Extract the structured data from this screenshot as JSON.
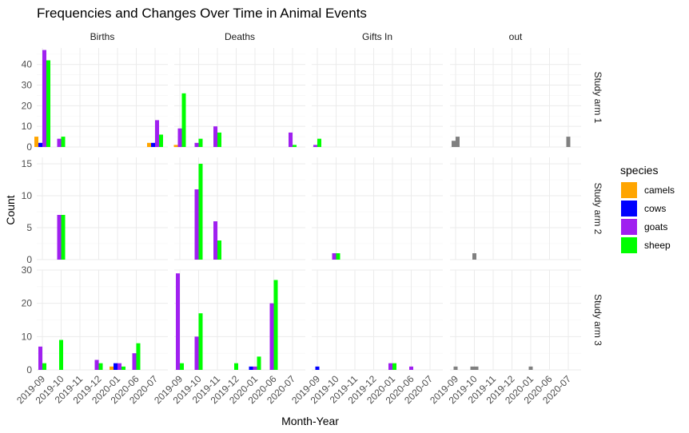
{
  "chart_data": {
    "type": "bar",
    "title": "Frequencies and Changes Over Time in Animal Events",
    "xlabel": "Month-Year",
    "ylabel": "Count",
    "categories": [
      "2019-09",
      "2019-10",
      "2019-11",
      "2019-12",
      "2020-01",
      "2020-06",
      "2020-07"
    ],
    "columns": [
      "Births",
      "Deaths",
      "Gifts In",
      "out"
    ],
    "rows": [
      "Study arm 1",
      "Study arm 2",
      "Study arm 3"
    ],
    "legend": {
      "title": "species",
      "position": "right",
      "items": [
        {
          "name": "camels",
          "color": "#FFA500"
        },
        {
          "name": "cows",
          "color": "#0000FF"
        },
        {
          "name": "goats",
          "color": "#A020F0"
        },
        {
          "name": "sheep",
          "color": "#00FF00"
        }
      ]
    },
    "na_color": "#808080",
    "grid": true,
    "row_scales": [
      {
        "ylim": [
          0,
          48
        ],
        "ticks": [
          0,
          10,
          20,
          30,
          40
        ]
      },
      {
        "ylim": [
          0,
          16
        ],
        "ticks": [
          0,
          5,
          10,
          15
        ]
      },
      {
        "ylim": [
          0,
          30
        ],
        "ticks": [
          0,
          10,
          20,
          30
        ]
      }
    ],
    "panels": [
      {
        "row": "Study arm 1",
        "column": "Births",
        "bars": [
          {
            "x": "2019-09",
            "series": [
              "camels",
              "cows",
              "goats",
              "sheep"
            ],
            "values": [
              5,
              2,
              47,
              42
            ]
          },
          {
            "x": "2019-10",
            "series": [
              "goats",
              "sheep"
            ],
            "values": [
              4,
              5
            ]
          },
          {
            "x": "2020-07",
            "series": [
              "camels",
              "cows",
              "goats",
              "sheep"
            ],
            "values": [
              2,
              2,
              13,
              6
            ]
          }
        ]
      },
      {
        "row": "Study arm 1",
        "column": "Deaths",
        "bars": [
          {
            "x": "2019-09",
            "series": [
              "camels",
              "goats",
              "sheep"
            ],
            "values": [
              1,
              9,
              26
            ]
          },
          {
            "x": "2019-10",
            "series": [
              "goats",
              "sheep"
            ],
            "values": [
              2,
              4
            ]
          },
          {
            "x": "2019-11",
            "series": [
              "goats",
              "sheep"
            ],
            "values": [
              10,
              7
            ]
          },
          {
            "x": "2020-07",
            "series": [
              "goats",
              "sheep"
            ],
            "values": [
              7,
              1
            ]
          }
        ]
      },
      {
        "row": "Study arm 1",
        "column": "Gifts In",
        "bars": [
          {
            "x": "2019-09",
            "series": [
              "goats",
              "sheep"
            ],
            "values": [
              1,
              4
            ]
          }
        ]
      },
      {
        "row": "Study arm 1",
        "column": "out",
        "bars": [
          {
            "x": "2019-09",
            "series": [
              "NA",
              "NA"
            ],
            "values": [
              3,
              5
            ]
          },
          {
            "x": "2020-07",
            "series": [
              "NA"
            ],
            "values": [
              5
            ]
          }
        ]
      },
      {
        "row": "Study arm 2",
        "column": "Births",
        "bars": [
          {
            "x": "2019-10",
            "series": [
              "goats",
              "sheep"
            ],
            "values": [
              7,
              7
            ]
          }
        ]
      },
      {
        "row": "Study arm 2",
        "column": "Deaths",
        "bars": [
          {
            "x": "2019-10",
            "series": [
              "goats",
              "sheep"
            ],
            "values": [
              11,
              15
            ]
          },
          {
            "x": "2019-11",
            "series": [
              "goats",
              "sheep"
            ],
            "values": [
              6,
              3
            ]
          }
        ]
      },
      {
        "row": "Study arm 2",
        "column": "Gifts In",
        "bars": [
          {
            "x": "2019-10",
            "series": [
              "goats",
              "sheep"
            ],
            "values": [
              1,
              1
            ]
          }
        ]
      },
      {
        "row": "Study arm 2",
        "column": "out",
        "bars": [
          {
            "x": "2019-10",
            "series": [
              "NA"
            ],
            "values": [
              1
            ]
          }
        ]
      },
      {
        "row": "Study arm 3",
        "column": "Births",
        "bars": [
          {
            "x": "2019-09",
            "series": [
              "goats",
              "sheep"
            ],
            "values": [
              7,
              2
            ]
          },
          {
            "x": "2019-10",
            "series": [
              "sheep"
            ],
            "values": [
              9
            ]
          },
          {
            "x": "2019-12",
            "series": [
              "goats",
              "sheep"
            ],
            "values": [
              3,
              2
            ]
          },
          {
            "x": "2020-01",
            "series": [
              "camels",
              "cows",
              "goats",
              "sheep"
            ],
            "values": [
              1,
              2,
              2,
              1
            ]
          },
          {
            "x": "2020-06",
            "series": [
              "goats",
              "sheep"
            ],
            "values": [
              5,
              8
            ]
          }
        ]
      },
      {
        "row": "Study arm 3",
        "column": "Deaths",
        "bars": [
          {
            "x": "2019-09",
            "series": [
              "goats",
              "sheep"
            ],
            "values": [
              29,
              2
            ]
          },
          {
            "x": "2019-10",
            "series": [
              "goats",
              "sheep"
            ],
            "values": [
              10,
              17
            ]
          },
          {
            "x": "2019-12",
            "series": [
              "sheep"
            ],
            "values": [
              2
            ]
          },
          {
            "x": "2020-01",
            "series": [
              "cows",
              "goats",
              "sheep"
            ],
            "values": [
              1,
              1,
              4
            ]
          },
          {
            "x": "2020-06",
            "series": [
              "goats",
              "sheep"
            ],
            "values": [
              20,
              27
            ]
          }
        ]
      },
      {
        "row": "Study arm 3",
        "column": "Gifts In",
        "bars": [
          {
            "x": "2019-09",
            "series": [
              "cows"
            ],
            "values": [
              1
            ]
          },
          {
            "x": "2020-01",
            "series": [
              "goats",
              "sheep"
            ],
            "values": [
              2,
              2
            ]
          },
          {
            "x": "2020-06",
            "series": [
              "goats"
            ],
            "values": [
              1
            ]
          }
        ]
      },
      {
        "row": "Study arm 3",
        "column": "out",
        "bars": [
          {
            "x": "2019-09",
            "series": [
              "NA"
            ],
            "values": [
              1
            ]
          },
          {
            "x": "2019-10",
            "series": [
              "NA",
              "NA"
            ],
            "values": [
              1,
              1
            ]
          },
          {
            "x": "2020-01",
            "series": [
              "NA"
            ],
            "values": [
              1
            ]
          }
        ]
      }
    ]
  }
}
